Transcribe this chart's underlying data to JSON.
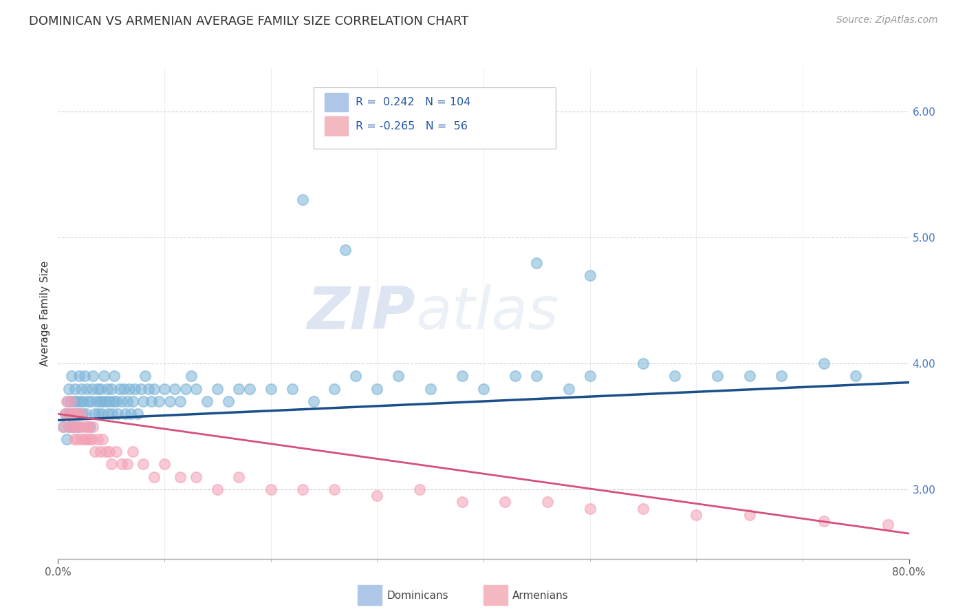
{
  "title": "DOMINICAN VS ARMENIAN AVERAGE FAMILY SIZE CORRELATION CHART",
  "source": "Source: ZipAtlas.com",
  "ylabel": "Average Family Size",
  "xlim": [
    0.0,
    0.8
  ],
  "ylim": [
    2.45,
    6.35
  ],
  "yticks": [
    3.0,
    4.0,
    5.0,
    6.0
  ],
  "dominican_color": "#7ab3d8",
  "armenian_color": "#f4a0b5",
  "dominican_line_color": "#1a4f8a",
  "armenian_line_color": "#d64f7a",
  "legend_box_color": "#aec6e8",
  "legend_pink_color": "#f4b8c1",
  "background_color": "#ffffff",
  "title_fontsize": 13,
  "source_fontsize": 10,
  "axis_label_fontsize": 11,
  "tick_fontsize": 11,
  "watermark": "ZIPatlas",
  "dom_r": 0.242,
  "dom_n": 104,
  "arm_r": -0.265,
  "arm_n": 56,
  "dominican_points_x": [
    0.005,
    0.007,
    0.008,
    0.009,
    0.01,
    0.01,
    0.011,
    0.012,
    0.013,
    0.013,
    0.014,
    0.015,
    0.015,
    0.016,
    0.017,
    0.018,
    0.019,
    0.02,
    0.02,
    0.021,
    0.022,
    0.023,
    0.024,
    0.025,
    0.026,
    0.027,
    0.028,
    0.03,
    0.031,
    0.032,
    0.033,
    0.035,
    0.036,
    0.037,
    0.038,
    0.039,
    0.04,
    0.041,
    0.042,
    0.043,
    0.045,
    0.046,
    0.047,
    0.048,
    0.05,
    0.051,
    0.052,
    0.053,
    0.055,
    0.056,
    0.058,
    0.06,
    0.062,
    0.063,
    0.065,
    0.067,
    0.068,
    0.07,
    0.072,
    0.075,
    0.078,
    0.08,
    0.082,
    0.085,
    0.088,
    0.09,
    0.095,
    0.1,
    0.105,
    0.11,
    0.115,
    0.12,
    0.125,
    0.13,
    0.14,
    0.15,
    0.16,
    0.17,
    0.18,
    0.2,
    0.22,
    0.24,
    0.26,
    0.28,
    0.3,
    0.32,
    0.35,
    0.38,
    0.4,
    0.43,
    0.45,
    0.48,
    0.5,
    0.55,
    0.58,
    0.62,
    0.65,
    0.68,
    0.72,
    0.75,
    0.45,
    0.5,
    0.23,
    0.27
  ],
  "dominican_points_y": [
    3.5,
    3.6,
    3.4,
    3.7,
    3.5,
    3.8,
    3.6,
    3.7,
    3.5,
    3.9,
    3.6,
    3.7,
    3.5,
    3.8,
    3.6,
    3.7,
    3.5,
    3.6,
    3.9,
    3.7,
    3.8,
    3.6,
    3.7,
    3.9,
    3.6,
    3.8,
    3.7,
    3.5,
    3.7,
    3.8,
    3.9,
    3.6,
    3.7,
    3.8,
    3.6,
    3.7,
    3.8,
    3.6,
    3.7,
    3.9,
    3.7,
    3.8,
    3.6,
    3.7,
    3.8,
    3.6,
    3.7,
    3.9,
    3.7,
    3.6,
    3.8,
    3.7,
    3.8,
    3.6,
    3.7,
    3.8,
    3.6,
    3.7,
    3.8,
    3.6,
    3.8,
    3.7,
    3.9,
    3.8,
    3.7,
    3.8,
    3.7,
    3.8,
    3.7,
    3.8,
    3.7,
    3.8,
    3.9,
    3.8,
    3.7,
    3.8,
    3.7,
    3.8,
    3.8,
    3.8,
    3.8,
    3.7,
    3.8,
    3.9,
    3.8,
    3.9,
    3.8,
    3.9,
    3.8,
    3.9,
    3.9,
    3.8,
    3.9,
    4.0,
    3.9,
    3.9,
    3.9,
    3.9,
    4.0,
    3.9,
    4.8,
    4.7,
    5.3,
    4.9
  ],
  "armenian_points_x": [
    0.005,
    0.007,
    0.008,
    0.01,
    0.011,
    0.012,
    0.013,
    0.014,
    0.015,
    0.016,
    0.017,
    0.018,
    0.019,
    0.02,
    0.021,
    0.022,
    0.023,
    0.025,
    0.026,
    0.027,
    0.028,
    0.03,
    0.032,
    0.033,
    0.035,
    0.037,
    0.04,
    0.042,
    0.045,
    0.048,
    0.05,
    0.055,
    0.06,
    0.065,
    0.07,
    0.08,
    0.09,
    0.1,
    0.115,
    0.13,
    0.15,
    0.17,
    0.2,
    0.23,
    0.26,
    0.3,
    0.34,
    0.38,
    0.42,
    0.46,
    0.5,
    0.55,
    0.6,
    0.65,
    0.72,
    0.78
  ],
  "armenian_points_y": [
    3.5,
    3.6,
    3.7,
    3.6,
    3.5,
    3.7,
    3.5,
    3.6,
    3.4,
    3.6,
    3.5,
    3.4,
    3.6,
    3.5,
    3.6,
    3.4,
    3.5,
    3.4,
    3.5,
    3.4,
    3.5,
    3.4,
    3.4,
    3.5,
    3.3,
    3.4,
    3.3,
    3.4,
    3.3,
    3.3,
    3.2,
    3.3,
    3.2,
    3.2,
    3.3,
    3.2,
    3.1,
    3.2,
    3.1,
    3.1,
    3.0,
    3.1,
    3.0,
    3.0,
    3.0,
    2.95,
    3.0,
    2.9,
    2.9,
    2.9,
    2.85,
    2.85,
    2.8,
    2.8,
    2.75,
    2.72
  ]
}
